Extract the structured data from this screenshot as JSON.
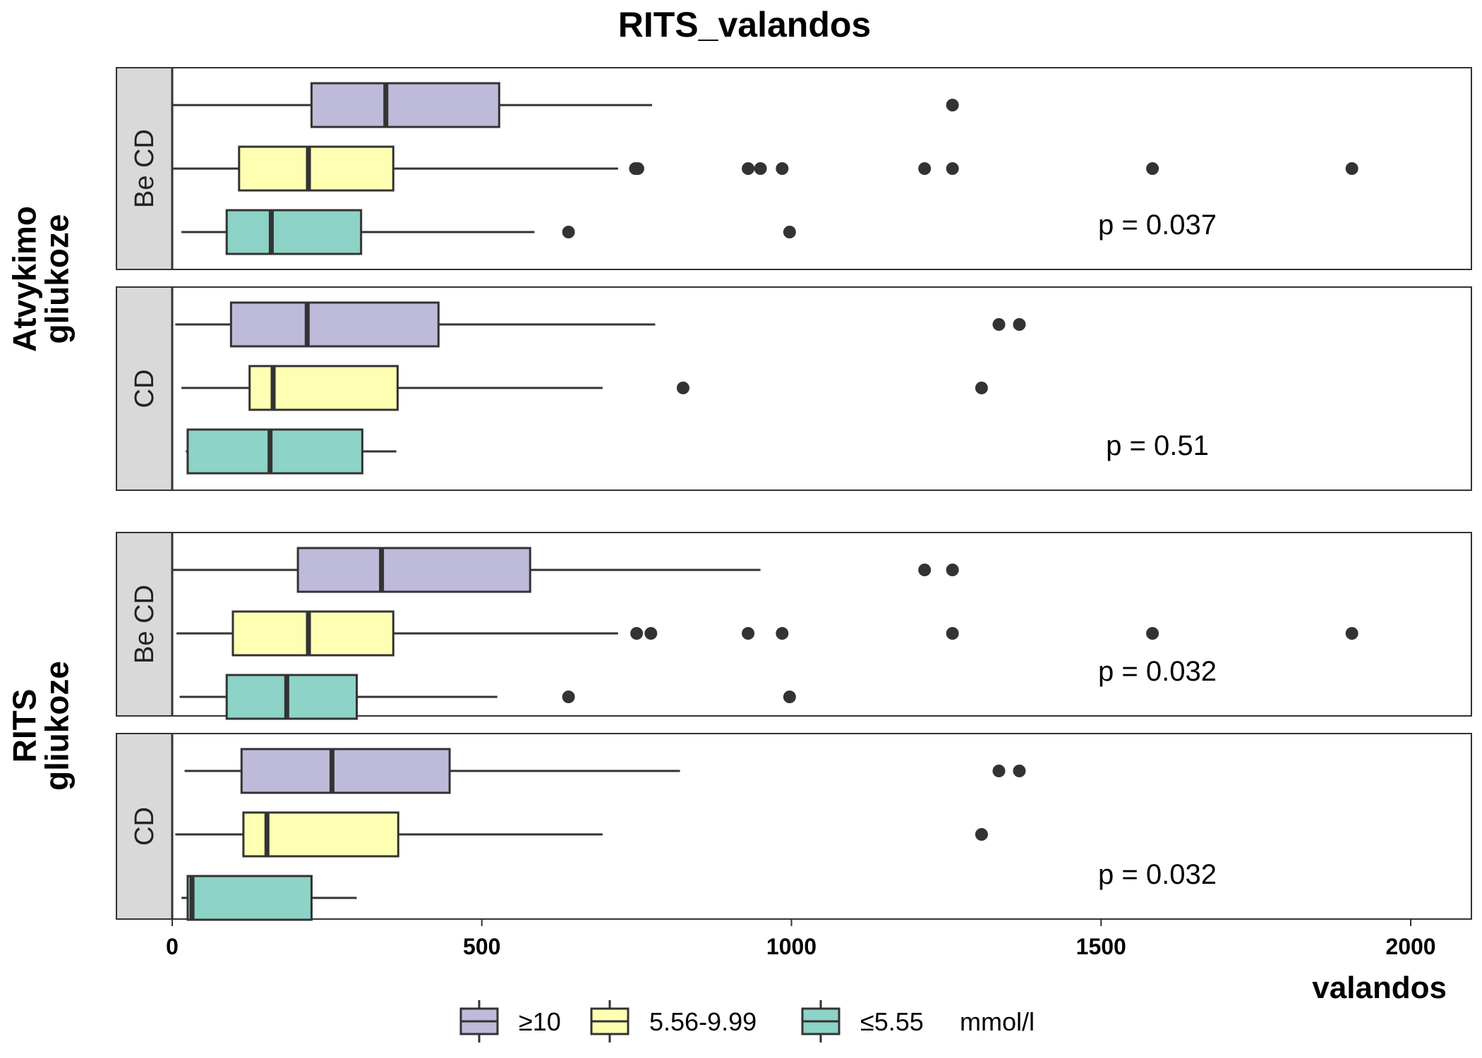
{
  "chart_data": {
    "type": "boxplot",
    "title": "RITS_valandos",
    "xlabel": "valandos",
    "xlim": [
      -190,
      2095
    ],
    "xticks": [
      0,
      500,
      1000,
      1500,
      2000
    ],
    "xtick_labels": [
      "0",
      "500",
      "1000",
      "1500",
      "2000"
    ],
    "legend": {
      "placement": "bottom",
      "items": [
        "≥10",
        "5.56-9.99",
        "≤5.55"
      ],
      "unit_label": "mmol/l"
    },
    "series_colors": {
      "≥10": "#bebada",
      "5.56-9.99": "#ffffb3",
      "≤5.55": "#8dd3c7"
    },
    "groups": [
      {
        "label": "Atvykimo\ngliukoze",
        "panels": [
          {
            "strip": "Be CD",
            "p_text": "p = 0.037",
            "boxes": [
              {
                "series": "≥10",
                "whisker_low": 0,
                "q1": 225,
                "median": 345,
                "q3": 528,
                "whisker_high": 775,
                "outliers": [
                  1260
                ]
              },
              {
                "series": "5.56-9.99",
                "whisker_low": 0,
                "q1": 108,
                "median": 220,
                "q3": 357,
                "whisker_high": 720,
                "outliers": [
                  748,
                  752,
                  930,
                  950,
                  985,
                  1215,
                  1260,
                  1583,
                  1905
                ]
              },
              {
                "series": "≤5.55",
                "whisker_low": 15,
                "q1": 88,
                "median": 160,
                "q3": 305,
                "whisker_high": 585,
                "outliers": [
                  640,
                  997
                ]
              }
            ]
          },
          {
            "strip": "CD",
            "p_text": "p = 0.51",
            "boxes": [
              {
                "series": "≥10",
                "whisker_low": 5,
                "q1": 95,
                "median": 218,
                "q3": 430,
                "whisker_high": 780,
                "outliers": [
                  1335,
                  1368
                ]
              },
              {
                "series": "5.56-9.99",
                "whisker_low": 15,
                "q1": 125,
                "median": 163,
                "q3": 364,
                "whisker_high": 695,
                "outliers": [
                  825,
                  1307
                ]
              },
              {
                "series": "≤5.55",
                "whisker_low": 22,
                "q1": 25,
                "median": 158,
                "q3": 307,
                "whisker_high": 362,
                "outliers": []
              }
            ]
          }
        ]
      },
      {
        "label": "RITS\ngliukoze",
        "panels": [
          {
            "strip": "Be CD",
            "p_text": "p = 0.032",
            "boxes": [
              {
                "series": "≥10",
                "whisker_low": 0,
                "q1": 203,
                "median": 338,
                "q3": 578,
                "whisker_high": 950,
                "outliers": [
                  1215,
                  1260
                ]
              },
              {
                "series": "5.56-9.99",
                "whisker_low": 7,
                "q1": 98,
                "median": 220,
                "q3": 357,
                "whisker_high": 720,
                "outliers": [
                  750,
                  773,
                  930,
                  985,
                  1260,
                  1583,
                  1905
                ]
              },
              {
                "series": "≤5.55",
                "whisker_low": 12,
                "q1": 88,
                "median": 185,
                "q3": 298,
                "whisker_high": 525,
                "outliers": [
                  640,
                  997
                ]
              }
            ]
          },
          {
            "strip": "CD",
            "p_text": "p = 0.032",
            "boxes": [
              {
                "series": "≥10",
                "whisker_low": 20,
                "q1": 112,
                "median": 258,
                "q3": 448,
                "whisker_high": 820,
                "outliers": [
                  1335,
                  1368
                ]
              },
              {
                "series": "5.56-9.99",
                "whisker_low": 5,
                "q1": 115,
                "median": 153,
                "q3": 365,
                "whisker_high": 695,
                "outliers": [
                  1307
                ]
              },
              {
                "series": "≤5.55",
                "whisker_low": 15,
                "q1": 25,
                "median": 32,
                "q3": 225,
                "whisker_high": 298,
                "outliers": []
              }
            ]
          }
        ]
      }
    ]
  }
}
